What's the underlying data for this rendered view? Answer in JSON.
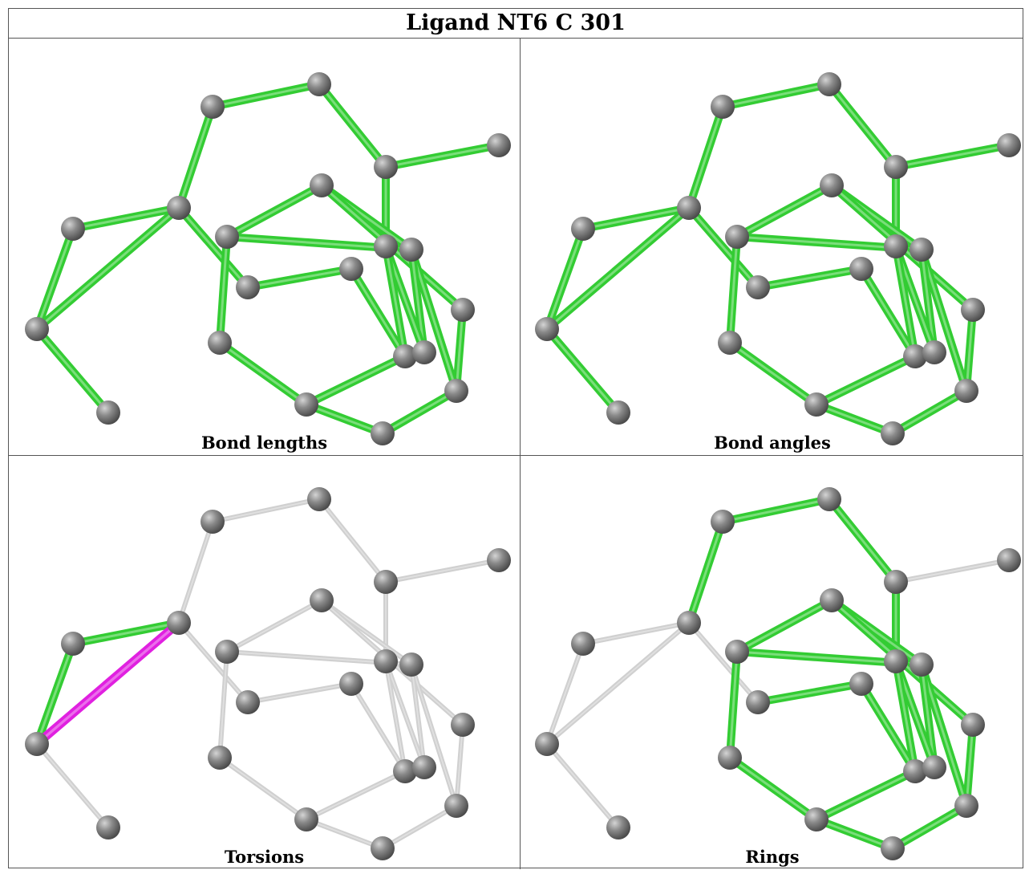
{
  "title": "Ligand NT6 C 301",
  "panels": [
    {
      "id": "bond-lengths",
      "caption": "Bond lengths"
    },
    {
      "id": "bond-angles",
      "caption": "Bond angles"
    },
    {
      "id": "torsions",
      "caption": "Torsions"
    },
    {
      "id": "rings",
      "caption": "Rings"
    }
  ],
  "colors": {
    "atom": "#7a7a7a",
    "highlight_bond": "#33cc33",
    "plain_bond": "#d0d0d0",
    "selected_bond": "#e020e0"
  }
}
